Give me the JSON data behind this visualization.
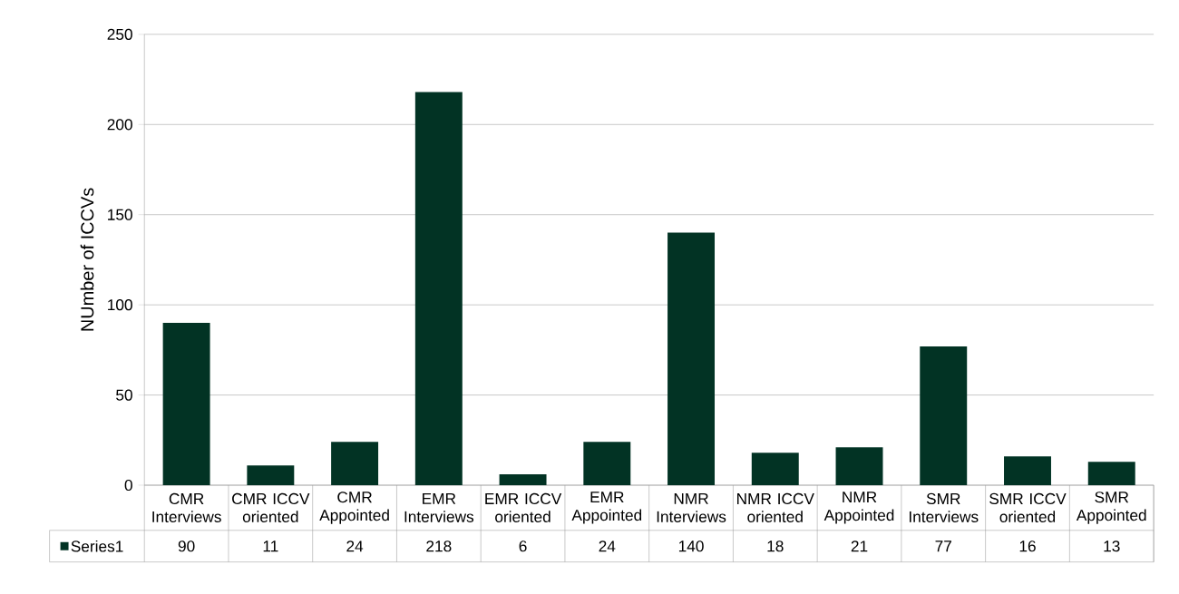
{
  "chart_data": {
    "type": "bar",
    "ylabel": "NUmber of ICCVs",
    "categories": [
      "CMR Interviews",
      "CMR ICCV oriented",
      "CMR Appointed",
      "EMR Interviews",
      "EMR ICCV oriented",
      "EMR Appointed",
      "NMR Interviews",
      "NMR ICCV oriented",
      "NMR Appointed",
      "SMR Interviews",
      "SMR ICCV oriented",
      "SMR Appointed"
    ],
    "series": [
      {
        "name": "Series1",
        "color": "#023324",
        "values": [
          90,
          11,
          24,
          218,
          6,
          24,
          140,
          18,
          21,
          77,
          16,
          13
        ]
      }
    ],
    "ylim": [
      0,
      250
    ],
    "yticks": [
      0,
      50,
      100,
      150,
      200,
      250
    ],
    "grid": "y",
    "legend": "bottom left",
    "data_labels": true
  }
}
